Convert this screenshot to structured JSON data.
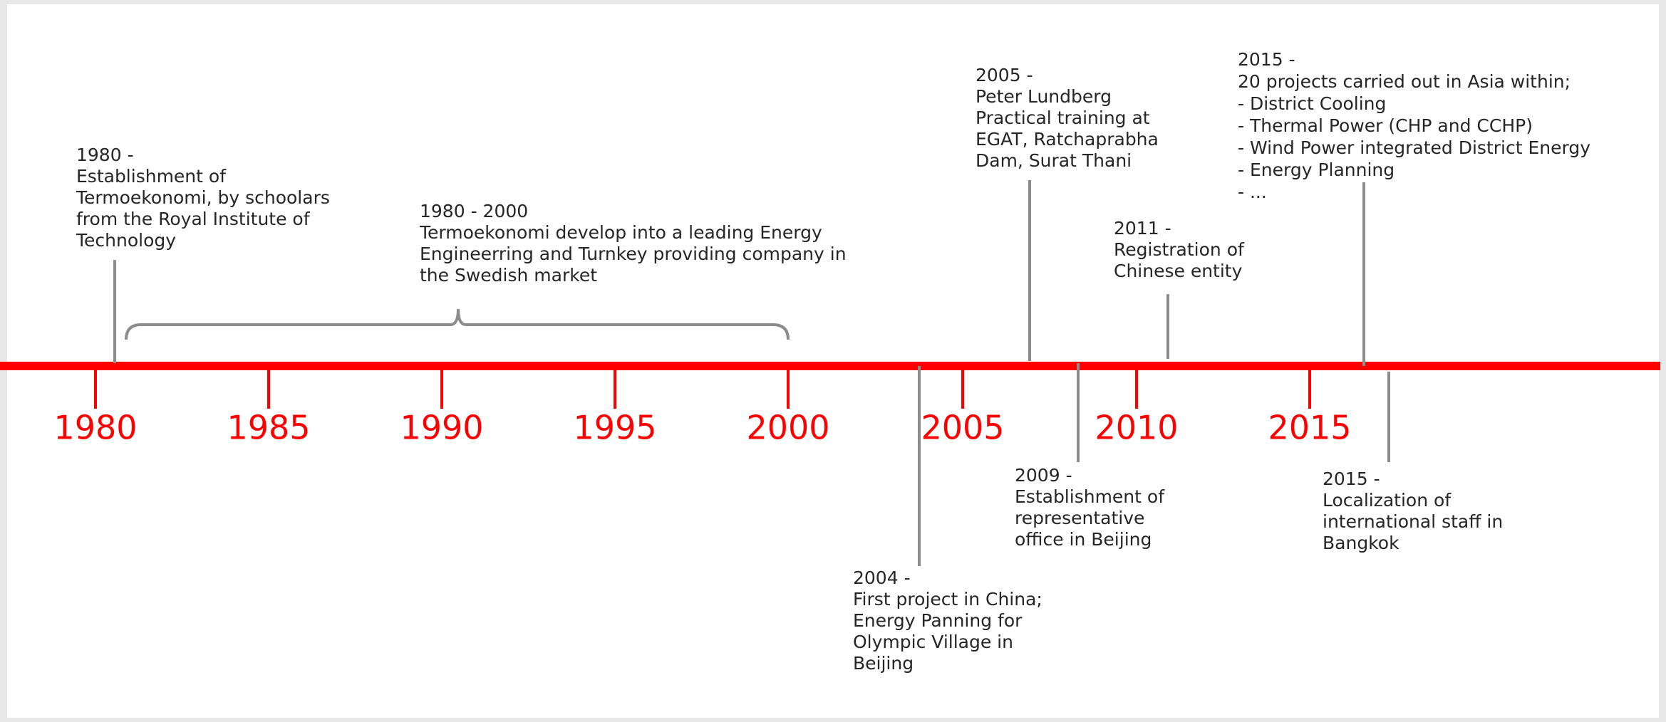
{
  "axis_labels": [
    "1980",
    "1985",
    "1990",
    "1995",
    "2000",
    "2005",
    "2010",
    "2015"
  ],
  "events": [
    {
      "lines": [
        "1980 -",
        "Establishment of",
        "Termoekonomi, by schoolars",
        "from the Royal Institute of",
        "Technology"
      ]
    },
    {
      "lines": [
        "1980 - 2000",
        "Termoekonomi develop into a leading Energy",
        "Engineerring and Turnkey providing company in",
        "the Swedish market"
      ]
    },
    {
      "lines": [
        "2004 -",
        "First project in China;",
        "Energy Panning for",
        "Olympic Village in",
        "Beijing"
      ]
    },
    {
      "lines": [
        "2005 -",
        "Peter Lundberg",
        "Practical training at",
        "EGAT, Ratchaprabha",
        "Dam, Surat Thani"
      ]
    },
    {
      "lines": [
        "2009 -",
        "Establishment of",
        "representative",
        "office in Beijing"
      ]
    },
    {
      "lines": [
        "2011 -",
        "Registration of",
        "Chinese entity"
      ]
    },
    {
      "lines": [
        "2015 -",
        "20 projects carried out in Asia within;",
        "- District Cooling",
        "- Thermal Power (CHP and CCHP)",
        "- Wind Power integrated District Energy",
        "- Energy Planning",
        "- ..."
      ]
    },
    {
      "lines": [
        "2015 -",
        "Localization of",
        "international staff in",
        "Bangkok"
      ]
    }
  ]
}
